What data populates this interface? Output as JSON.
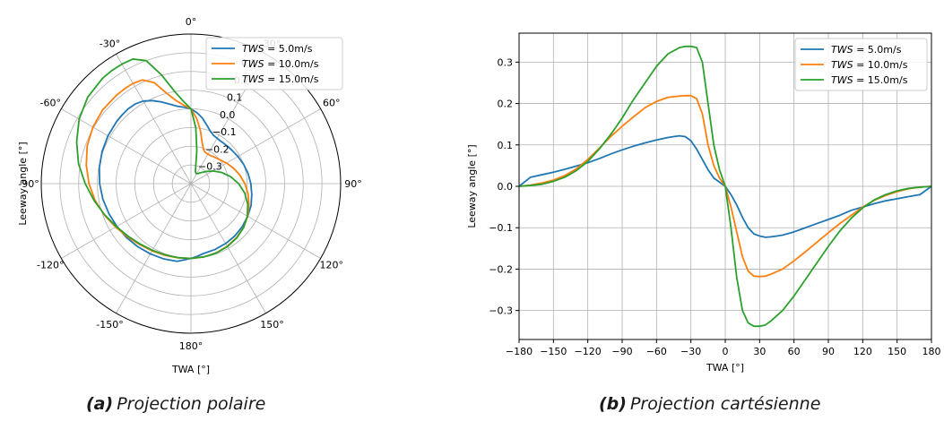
{
  "captions": [
    {
      "letter": "(a)",
      "text": "Projection polaire"
    },
    {
      "letter": "(b)",
      "text": "Projection cartésienne"
    }
  ],
  "chart_data": [
    {
      "type": "line",
      "projection": "polar",
      "title": "",
      "xlabel": "TWA [°]",
      "ylabel": "Leeway angle [°]",
      "angle_ticks": [
        "0°",
        "30°",
        "60°",
        "90°",
        "120°",
        "150°",
        "180°",
        "-150°",
        "-120°",
        "-90°",
        "-60°",
        "-30°"
      ],
      "radial_ticks": [
        "0.3",
        "0.2",
        "0.1",
        "0.0",
        "−0.1",
        "−0.2",
        "−0.3"
      ],
      "rlim": [
        -0.4,
        0.4
      ],
      "theta_zero": "top",
      "grid": true,
      "legend": "top-right",
      "series_ref": "shared"
    },
    {
      "type": "line",
      "projection": "cartesian",
      "title": "",
      "xlabel": "TWA [°]",
      "ylabel": "Leeway angle [°]",
      "xticks": [
        "−180",
        "−150",
        "−120",
        "−90",
        "−60",
        "−30",
        "0",
        "30",
        "60",
        "90",
        "120",
        "150",
        "180"
      ],
      "yticks": [
        "−0.3",
        "−0.2",
        "−0.1",
        "0.0",
        "0.1",
        "0.2",
        "0.3"
      ],
      "xlim": [
        -180,
        180
      ],
      "ylim": [
        -0.37,
        0.37
      ],
      "grid": true,
      "legend": "top-right",
      "series_ref": "shared"
    }
  ],
  "series": [
    {
      "legend_var": "TWS",
      "legend_value": " = 5.0m/s",
      "color": "#1f77b4",
      "x": [
        -180,
        -170,
        -160,
        -150,
        -140,
        -130,
        -120,
        -110,
        -100,
        -90,
        -80,
        -70,
        -60,
        -50,
        -45,
        -40,
        -35,
        -30,
        -25,
        -20,
        -15,
        -10,
        -5,
        0,
        5,
        10,
        15,
        20,
        25,
        30,
        35,
        40,
        45,
        50,
        60,
        70,
        80,
        90,
        100,
        110,
        120,
        130,
        140,
        150,
        160,
        170,
        175,
        180
      ],
      "y": [
        0.0,
        0.022,
        0.028,
        0.034,
        0.041,
        0.049,
        0.057,
        0.067,
        0.078,
        0.088,
        0.097,
        0.105,
        0.112,
        0.118,
        0.12,
        0.122,
        0.12,
        0.11,
        0.09,
        0.065,
        0.04,
        0.02,
        0.01,
        0.0,
        -0.02,
        -0.045,
        -0.075,
        -0.1,
        -0.115,
        -0.12,
        -0.123,
        -0.122,
        -0.12,
        -0.118,
        -0.11,
        -0.1,
        -0.09,
        -0.08,
        -0.07,
        -0.058,
        -0.05,
        -0.042,
        -0.035,
        -0.03,
        -0.025,
        -0.02,
        -0.01,
        0.0
      ]
    },
    {
      "legend_var": "TWS",
      "legend_value": " = 10.0m/s",
      "color": "#ff7f0e",
      "x": [
        -180,
        -170,
        -160,
        -150,
        -140,
        -130,
        -120,
        -110,
        -100,
        -90,
        -80,
        -70,
        -60,
        -50,
        -40,
        -35,
        -30,
        -25,
        -20,
        -15,
        -10,
        -5,
        0,
        5,
        10,
        15,
        20,
        25,
        30,
        35,
        40,
        50,
        60,
        70,
        80,
        90,
        100,
        110,
        120,
        130,
        140,
        150,
        160,
        170,
        180
      ],
      "y": [
        0.0,
        0.003,
        0.008,
        0.015,
        0.026,
        0.042,
        0.065,
        0.092,
        0.12,
        0.145,
        0.168,
        0.19,
        0.205,
        0.215,
        0.218,
        0.219,
        0.219,
        0.212,
        0.175,
        0.1,
        0.05,
        0.02,
        0.0,
        -0.05,
        -0.11,
        -0.17,
        -0.205,
        -0.217,
        -0.218,
        -0.217,
        -0.212,
        -0.2,
        -0.18,
        -0.158,
        -0.135,
        -0.112,
        -0.09,
        -0.07,
        -0.05,
        -0.034,
        -0.022,
        -0.013,
        -0.006,
        -0.002,
        0.0
      ]
    },
    {
      "legend_var": "TWS",
      "legend_value": " = 15.0m/s",
      "color": "#2ca02c",
      "x": [
        -180,
        -170,
        -160,
        -150,
        -140,
        -130,
        -120,
        -110,
        -100,
        -90,
        -80,
        -70,
        -60,
        -50,
        -40,
        -35,
        -30,
        -25,
        -20,
        -15,
        -10,
        -5,
        0,
        5,
        10,
        15,
        20,
        25,
        30,
        35,
        40,
        50,
        60,
        70,
        80,
        90,
        100,
        110,
        120,
        130,
        140,
        150,
        160,
        170,
        180
      ],
      "y": [
        0.0,
        0.002,
        0.005,
        0.012,
        0.022,
        0.038,
        0.06,
        0.09,
        0.125,
        0.165,
        0.21,
        0.25,
        0.29,
        0.32,
        0.335,
        0.338,
        0.338,
        0.335,
        0.3,
        0.2,
        0.1,
        0.04,
        0.0,
        -0.1,
        -0.22,
        -0.3,
        -0.33,
        -0.338,
        -0.338,
        -0.335,
        -0.325,
        -0.3,
        -0.265,
        -0.225,
        -0.185,
        -0.145,
        -0.108,
        -0.077,
        -0.052,
        -0.033,
        -0.02,
        -0.011,
        -0.005,
        -0.002,
        0.0
      ]
    }
  ]
}
